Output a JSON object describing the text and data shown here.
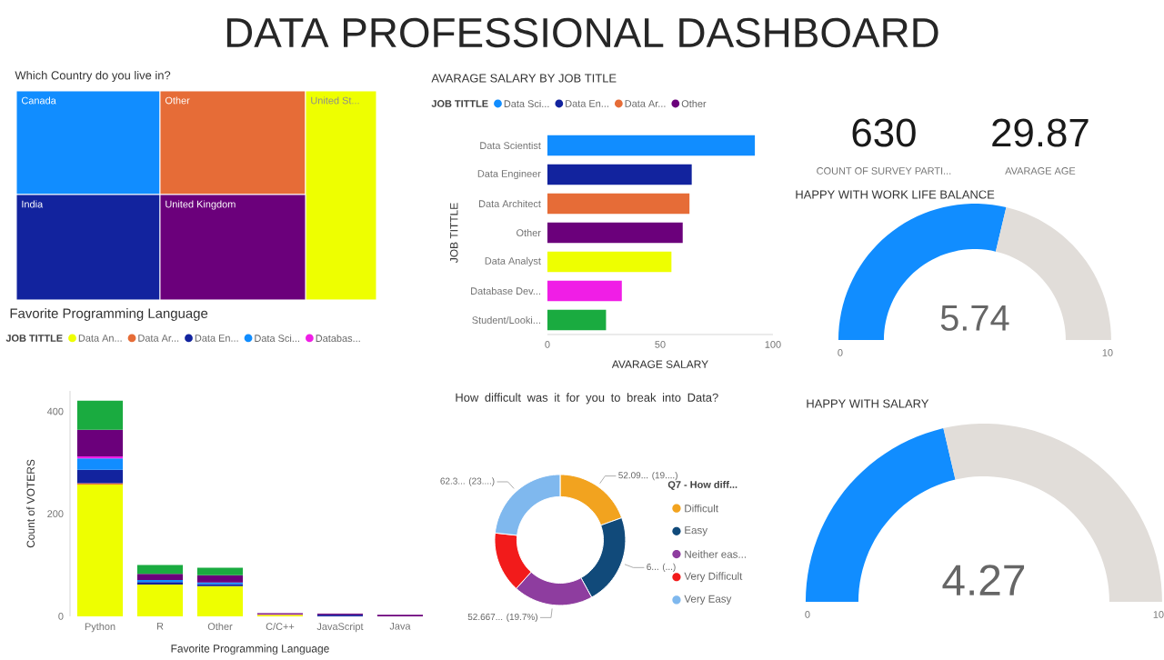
{
  "chart_data": [
    {
      "type": "other",
      "title": "DATA PROFESSIONAL DASHBOARD"
    },
    {
      "type": "other",
      "title": "Which Country do you live in?",
      "categories": [
        "Canada",
        "Other",
        "United St...",
        "India",
        "United Kingdom"
      ],
      "colors": [
        "#118dff",
        "#e66c37",
        "#eeff00",
        "#12239e",
        "#6b007b"
      ]
    },
    {
      "type": "bar",
      "orientation": "horizontal",
      "title": "AVARAGE SALARY BY JOB TITLE",
      "legend_title": "JOB TITTLE",
      "xlabel": "AVARAGE SALARY",
      "ylabel": "JOB TITTLE",
      "legend": "top left",
      "categories": [
        "Data Scientist",
        "Data Engineer",
        "Data Architect",
        "Other",
        "Data Analyst",
        "Database Dev...",
        "Student/Looki..."
      ],
      "xlim": [
        0,
        100
      ],
      "xticks": [
        0,
        50,
        100
      ],
      "series": [
        {
          "name": "Data Sci...",
          "color": "#118dff",
          "values": [
            92,
            null,
            null,
            null,
            null,
            null,
            null
          ]
        },
        {
          "name": "Data En...",
          "color": "#12239e",
          "values": [
            null,
            64,
            null,
            null,
            null,
            null,
            null
          ]
        },
        {
          "name": "Data Ar...",
          "color": "#e66c37",
          "values": [
            null,
            null,
            63,
            null,
            null,
            null,
            null
          ]
        },
        {
          "name": "Other",
          "color": "#6b007b",
          "values": [
            null,
            null,
            null,
            60,
            null,
            null,
            null
          ]
        },
        {
          "color": "#eeff00",
          "values": [
            null,
            null,
            null,
            null,
            55,
            null,
            null
          ]
        },
        {
          "color": "#f01ee6",
          "values": [
            null,
            null,
            null,
            null,
            null,
            33,
            null
          ]
        },
        {
          "color": "#1aab40",
          "values": [
            null,
            null,
            null,
            null,
            null,
            null,
            26
          ]
        }
      ]
    },
    {
      "type": "other",
      "categories": [
        "COUNT OF SURVEY PARTI...",
        "AVARAGE AGE"
      ],
      "values": [
        630,
        29.87
      ],
      "data_labels": true
    },
    {
      "type": "donut",
      "title": "HAPPY WITH WORK LIFE BALANCE",
      "categories": [
        null,
        null
      ],
      "values": [
        57.4,
        42.6
      ],
      "colors": [
        "#118dff",
        "#e1ddd9"
      ],
      "annotations": [
        "5.74",
        "0",
        "10"
      ]
    },
    {
      "type": "bar",
      "stacked": true,
      "title": "Favorite Programming Language",
      "legend_title": "JOB TITTLE",
      "xlabel": "Favorite Programming Language",
      "ylabel": "Count of VOTERS",
      "legend": "top left",
      "categories": [
        "Python",
        "R",
        "Other",
        "C/C++",
        "JavaScript",
        "Java"
      ],
      "ylim": [
        0,
        440
      ],
      "yticks": [
        0,
        200,
        400
      ],
      "series": [
        {
          "name": "Data An...",
          "color": "#eeff00",
          "values": [
            257,
            62,
            59,
            3,
            null,
            null
          ]
        },
        {
          "name": "Data Ar...",
          "color": "#e66c37",
          "values": [
            3,
            null,
            null,
            null,
            null,
            null
          ]
        },
        {
          "name": "Data En...",
          "color": "#12239e",
          "values": [
            26,
            5,
            4,
            null,
            3,
            null
          ]
        },
        {
          "name": "Data Sci...",
          "color": "#118dff",
          "values": [
            22,
            4,
            3,
            null,
            null,
            null
          ]
        },
        {
          "name": "Databas...",
          "color": "#f01ee6",
          "values": [
            4,
            null,
            null,
            1,
            null,
            null
          ]
        },
        {
          "color": "#6b007b",
          "values": [
            52,
            12,
            14,
            2,
            2,
            3
          ]
        },
        {
          "color": "#1aab40",
          "values": [
            57,
            17,
            15,
            null,
            null,
            null
          ]
        }
      ]
    },
    {
      "type": "donut",
      "title": "How difficult was it for you to break into Data?",
      "legend_title": "Q7 - How diff...",
      "legend": "right",
      "categories": [
        "Difficult",
        "Easy",
        "Neither eas...",
        "Very Difficult",
        "Very Easy"
      ],
      "values": [
        19.5,
        22.5,
        19.7,
        15,
        23.3
      ],
      "colors": [
        "#f2a31f",
        "#114a7a",
        "#8e3d9f",
        "#f21b1b",
        "#7fb8ee"
      ],
      "annotations": [
        {
          "text": "52.09... (19....)",
          "x": "Difficult"
        },
        {
          "text": "6... (...)",
          "x": "Easy"
        },
        {
          "text": "52.667... (19.7%)",
          "x": "Neither eas..."
        },
        {
          "text": "62.3... (23....)",
          "x": "Very Easy"
        }
      ]
    },
    {
      "type": "donut",
      "title": "HAPPY WITH SALARY",
      "categories": [
        null,
        null
      ],
      "values": [
        42.7,
        57.3
      ],
      "colors": [
        "#118dff",
        "#e1ddd9"
      ],
      "annotations": [
        "4.27",
        "0",
        "10"
      ]
    }
  ]
}
